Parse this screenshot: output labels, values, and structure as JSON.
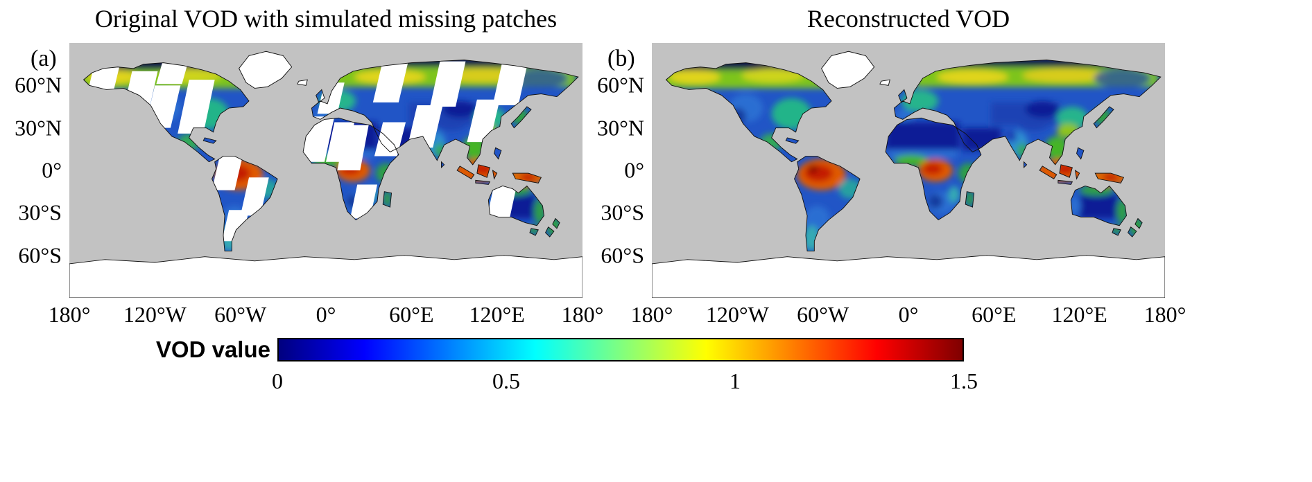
{
  "figure": {
    "panels": [
      {
        "label": "(a)",
        "title": "Original VOD with simulated missing patches"
      },
      {
        "label": "(b)",
        "title": "Reconstructed VOD"
      }
    ],
    "lat_ticks": [
      "60°N",
      "30°N",
      "0°",
      "30°S",
      "60°S"
    ],
    "lon_ticks": [
      "180°",
      "120°W",
      "60°W",
      "0°",
      "60°E",
      "120°E",
      "180°"
    ],
    "colorbar": {
      "label": "VOD value",
      "ticks": [
        "0",
        "0.5",
        "1",
        "1.5"
      ],
      "min": 0,
      "max": 1.5
    }
  },
  "colors": {
    "ocean": "#c2c2c2",
    "no_data": "#ffffff",
    "coastline": "#101010",
    "colormap_stops": [
      "#00007f",
      "#0000ff",
      "#00ffff",
      "#ffff00",
      "#ff0000",
      "#7f0000"
    ],
    "colormap_positions": [
      0,
      12.5,
      37.5,
      62.5,
      87.5,
      100
    ]
  },
  "chart_data": [
    {
      "type": "heatmap",
      "panel": "(a)",
      "title": "Original VOD with simulated missing patches",
      "projection": "equirectangular world map",
      "x_axis": {
        "label": "longitude",
        "ticks": [
          "180°",
          "120°W",
          "60°W",
          "0°",
          "60°E",
          "120°E",
          "180°"
        ],
        "range_deg": [
          -180,
          180
        ]
      },
      "y_axis": {
        "label": "latitude",
        "ticks": [
          "60°N",
          "30°N",
          "0°",
          "30°S",
          "60°S"
        ],
        "range_deg": [
          90,
          -90
        ]
      },
      "value": {
        "label": "VOD value",
        "range": [
          0,
          1.5
        ],
        "colormap": "jet"
      },
      "regions_estimated_vod": {
        "amazon_basin": 1.25,
        "congo_basin": 1.2,
        "indonesia_new_guinea": 1.1,
        "eastern_north_america": 0.7,
        "boreal_forest_belt": 0.85,
        "europe": 0.65,
        "eastern_china": 0.7,
        "india": 0.5,
        "sahara_and_arabia_deserts": 0.05,
        "central_australia": 0.1,
        "central_asia": 0.2,
        "southern_africa": 0.35,
        "patagonia": 0.45
      },
      "missing_data": "white diagonal swath patches over land simulating missing satellite orbit coverage",
      "no_data_regions": [
        "Greenland",
        "Antarctica",
        "ocean (gray mask)"
      ]
    },
    {
      "type": "heatmap",
      "panel": "(b)",
      "title": "Reconstructed VOD",
      "projection": "equirectangular world map",
      "x_axis": {
        "label": "longitude",
        "ticks": [
          "180°",
          "120°W",
          "60°W",
          "0°",
          "60°E",
          "120°E",
          "180°"
        ],
        "range_deg": [
          -180,
          180
        ]
      },
      "y_axis": {
        "label": "latitude",
        "ticks": [
          "60°N",
          "30°N",
          "0°",
          "30°S",
          "60°S"
        ],
        "range_deg": [
          90,
          -90
        ]
      },
      "value": {
        "label": "VOD value",
        "range": [
          0,
          1.5
        ],
        "colormap": "jet"
      },
      "regions_estimated_vod": {
        "amazon_basin": 1.25,
        "congo_basin": 1.2,
        "indonesia_new_guinea": 1.1,
        "eastern_north_america": 0.7,
        "boreal_forest_belt": 0.85,
        "europe": 0.65,
        "eastern_china": 0.7,
        "india": 0.5,
        "sahara_and_arabia_deserts": 0.05,
        "central_australia": 0.1,
        "central_asia": 0.2,
        "southern_africa": 0.35,
        "patagonia": 0.45
      },
      "missing_data": "none — gaps filled by reconstruction",
      "no_data_regions": [
        "Greenland",
        "Antarctica",
        "ocean (gray mask)"
      ]
    }
  ]
}
